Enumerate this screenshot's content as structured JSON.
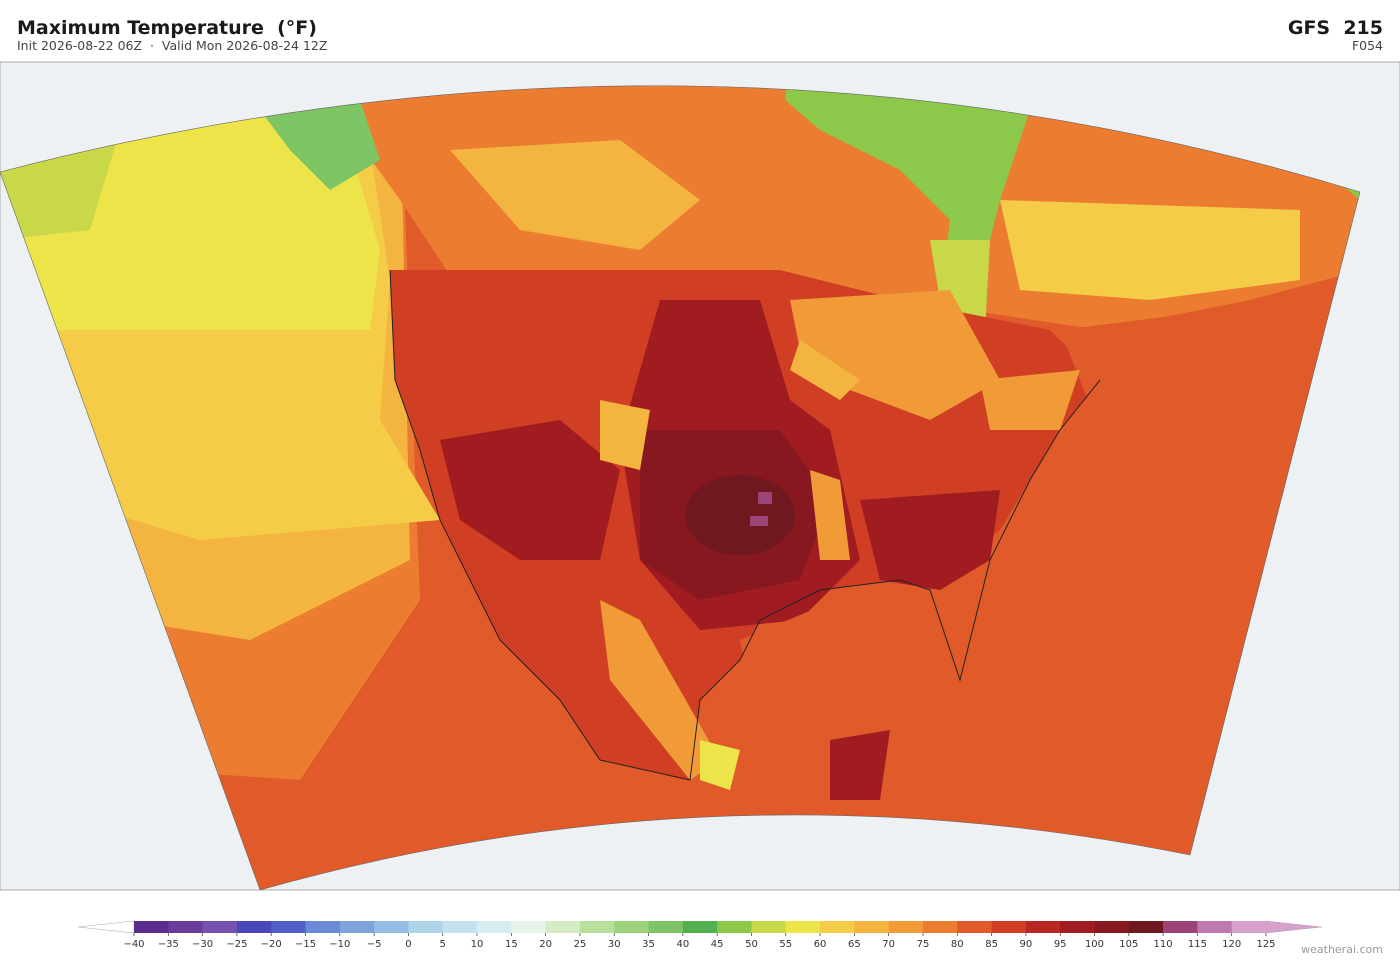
{
  "header": {
    "title": "Maximum Temperature  (°F)",
    "subtitle": "Init 2026-08-22 06Z  ·  Valid Mon 2026-08-24 12Z",
    "model": "GFS  215",
    "forecast_hour": "F054"
  },
  "colorbar": {
    "ticks": [
      {
        "value": -40,
        "label": "−40"
      },
      {
        "value": -35,
        "label": "−35"
      },
      {
        "value": -30,
        "label": "−30"
      },
      {
        "value": -25,
        "label": "−25"
      },
      {
        "value": -20,
        "label": "−20"
      },
      {
        "value": -15,
        "label": "−15"
      },
      {
        "value": -10,
        "label": "−10"
      },
      {
        "value": -5,
        "label": "−5"
      },
      0,
      5,
      10,
      15,
      20,
      25,
      30,
      35,
      40,
      45,
      50,
      55,
      60,
      65,
      70,
      75,
      80,
      85,
      90,
      95,
      100,
      105,
      110,
      115,
      120,
      125
    ],
    "colors": [
      "#5b2d8e",
      "#6a3d9a",
      "#7652b0",
      "#4848b8",
      "#5060c8",
      "#6a8ad8",
      "#7fa4dc",
      "#94bde4",
      "#aed4ea",
      "#c4e2ee",
      "#d6ecf0",
      "#e6f4ea",
      "#d4ecc4",
      "#b8e09a",
      "#9cd27a",
      "#7cc464",
      "#52b04e",
      "#8cc84a",
      "#c8d848",
      "#ece448",
      "#f4cc48",
      "#f4b440",
      "#f09a38",
      "#ec7c30",
      "#e05a2a",
      "#d03e24",
      "#b82822",
      "#a01c20",
      "#881820",
      "#701820",
      "#9c4478",
      "#c078b0",
      "#d8a0cc"
    ]
  },
  "credit": "weatherai.com"
}
